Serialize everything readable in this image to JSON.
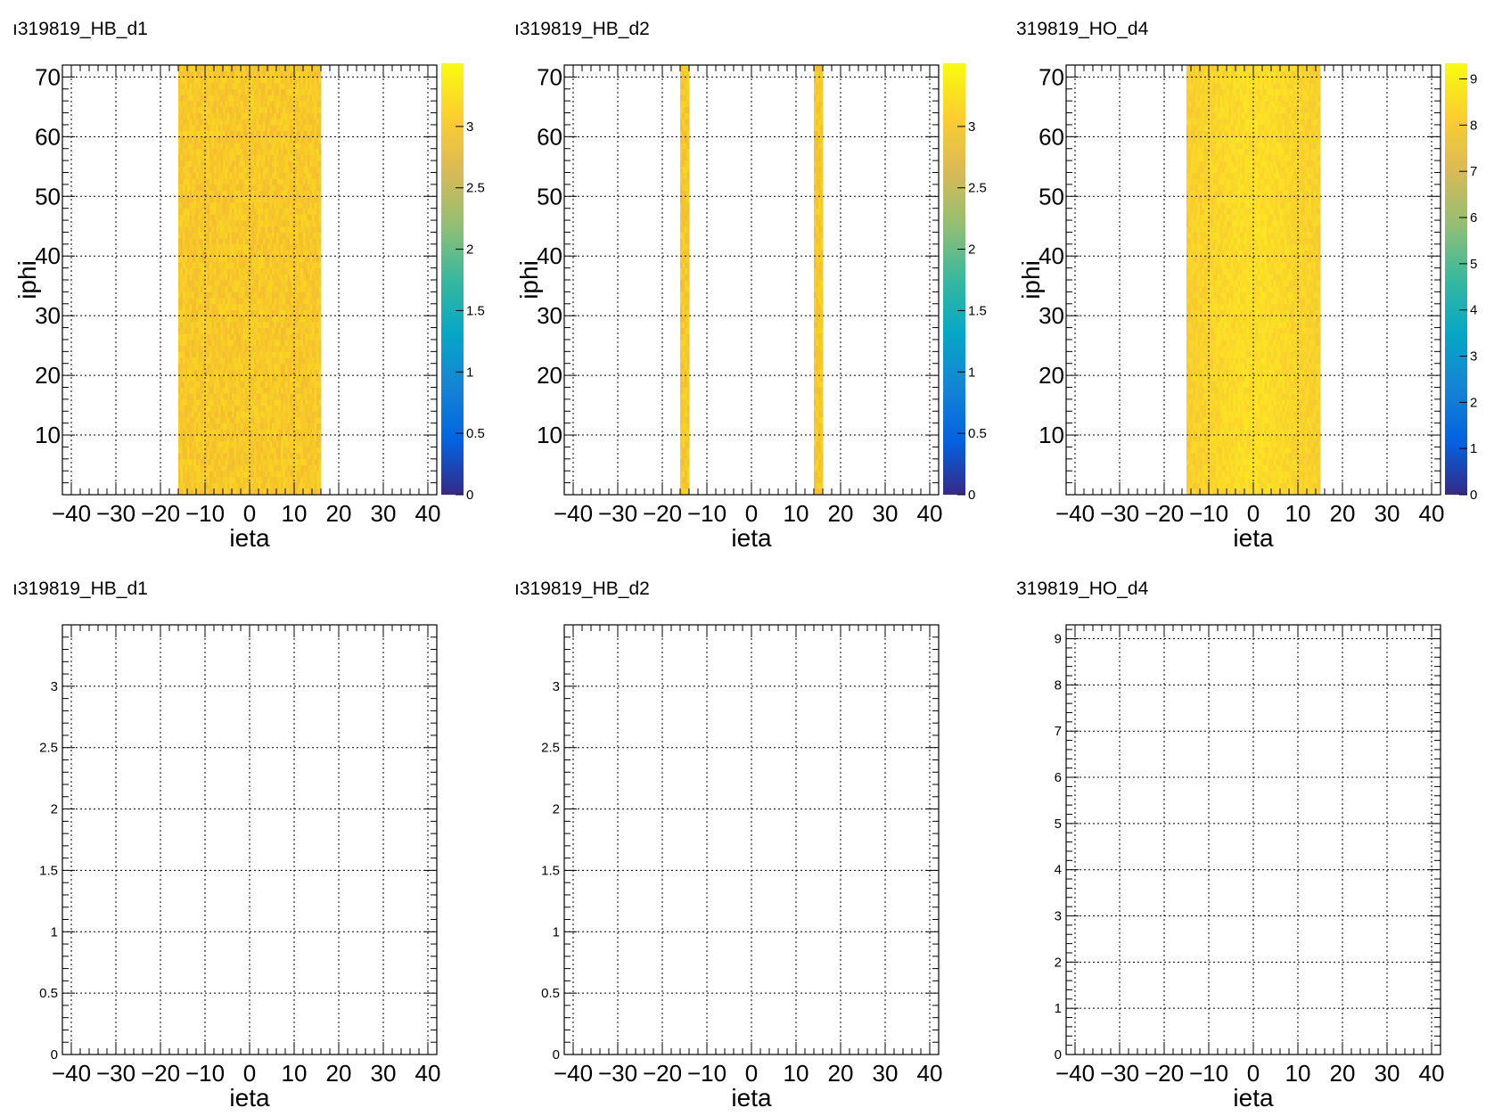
{
  "colors": {
    "palette": [
      "#352a87",
      "#0363e1",
      "#1485d4",
      "#06a7c6",
      "#38b99e",
      "#92bf73",
      "#d9ba56",
      "#fcce2e",
      "#f9fb0e"
    ],
    "hb_cell_low": "#f3bd2f",
    "hb_cell_high": "#fbd522",
    "ho_cell_low": "#f6c631",
    "ho_cell_high": "#fde523"
  },
  "chart_data": [
    {
      "type": "heatmap",
      "title": "ı319819_HB_d1",
      "xlabel": "ieta",
      "ylabel": "iphi",
      "xlim": [
        -42,
        42
      ],
      "ylim": [
        0,
        72
      ],
      "xticks": [
        "−40",
        "−30",
        "−20",
        "−10",
        "0",
        "10",
        "20",
        "30",
        "40"
      ],
      "yticks": [
        "10",
        "20",
        "30",
        "40",
        "50",
        "60",
        "70"
      ],
      "filled_ieta_range": [
        -16,
        16
      ],
      "filled_iphi_range": [
        0,
        72
      ],
      "zlim": [
        0,
        3.5
      ],
      "zticks": [
        "0",
        "0.5",
        "1",
        "1.5",
        "2",
        "2.5",
        "3"
      ],
      "grid": true
    },
    {
      "type": "heatmap",
      "title": "ı319819_HB_d2",
      "xlabel": "ieta",
      "ylabel": "iphi",
      "xlim": [
        -42,
        42
      ],
      "ylim": [
        0,
        72
      ],
      "xticks": [
        "−40",
        "−30",
        "−20",
        "−10",
        "0",
        "10",
        "20",
        "30",
        "40"
      ],
      "yticks": [
        "10",
        "20",
        "30",
        "40",
        "50",
        "60",
        "70"
      ],
      "filled_ieta_columns": [
        [
          -16,
          -14
        ],
        [
          14,
          16
        ]
      ],
      "filled_iphi_range": [
        0,
        72
      ],
      "zlim": [
        0,
        3.5
      ],
      "zticks": [
        "0",
        "0.5",
        "1",
        "1.5",
        "2",
        "2.5",
        "3"
      ],
      "grid": true
    },
    {
      "type": "heatmap",
      "title": "319819_HO_d4",
      "xlabel": "ieta",
      "ylabel": "iphi",
      "xlim": [
        -42,
        42
      ],
      "ylim": [
        0,
        72
      ],
      "xticks": [
        "−40",
        "−30",
        "−20",
        "−10",
        "0",
        "10",
        "20",
        "30",
        "40"
      ],
      "yticks": [
        "10",
        "20",
        "30",
        "40",
        "50",
        "60",
        "70"
      ],
      "filled_ieta_range": [
        -15,
        15
      ],
      "filled_iphi_range": [
        0,
        72
      ],
      "zlim": [
        0,
        9.3
      ],
      "zticks": [
        "0",
        "1",
        "2",
        "3",
        "4",
        "5",
        "6",
        "7",
        "8",
        "9"
      ],
      "grid": true
    },
    {
      "type": "line",
      "title": "ı319819_HB_d1",
      "xlabel": "ieta",
      "ylabel": "",
      "xlim": [
        -42,
        42
      ],
      "ylim": [
        0,
        3.5
      ],
      "xticks": [
        "−40",
        "−30",
        "−20",
        "−10",
        "0",
        "10",
        "20",
        "30",
        "40"
      ],
      "yticks": [
        "0",
        "0.5",
        "1",
        "1.5",
        "2",
        "2.5",
        "3"
      ],
      "series": [],
      "grid": true
    },
    {
      "type": "line",
      "title": "ı319819_HB_d2",
      "xlabel": "ieta",
      "ylabel": "",
      "xlim": [
        -42,
        42
      ],
      "ylim": [
        0,
        3.5
      ],
      "xticks": [
        "−40",
        "−30",
        "−20",
        "−10",
        "0",
        "10",
        "20",
        "30",
        "40"
      ],
      "yticks": [
        "0",
        "0.5",
        "1",
        "1.5",
        "2",
        "2.5",
        "3"
      ],
      "series": [],
      "grid": true
    },
    {
      "type": "line",
      "title": "319819_HO_d4",
      "xlabel": "ieta",
      "ylabel": "",
      "xlim": [
        -42,
        42
      ],
      "ylim": [
        0,
        9.3
      ],
      "xticks": [
        "−40",
        "−30",
        "−20",
        "−10",
        "0",
        "10",
        "20",
        "30",
        "40"
      ],
      "yticks": [
        "0",
        "1",
        "2",
        "3",
        "4",
        "5",
        "6",
        "7",
        "8",
        "9"
      ],
      "series": [],
      "grid": true
    }
  ]
}
